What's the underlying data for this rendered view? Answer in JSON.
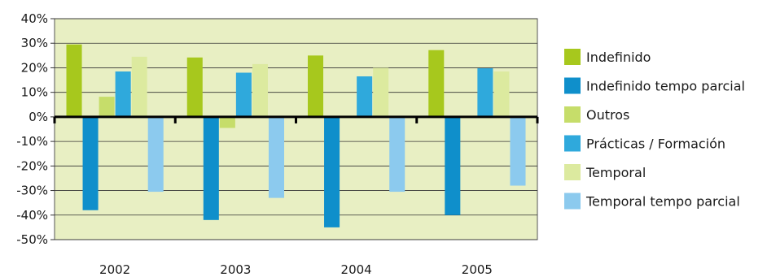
{
  "chart_data": {
    "type": "bar",
    "categories": [
      "2002",
      "2003",
      "2004",
      "2005"
    ],
    "series": [
      {
        "name": "Indefinido",
        "color": "#a7c81d",
        "values": [
          29.5,
          24.2,
          25.0,
          27.2
        ]
      },
      {
        "name": "Indefinido tempo parcial",
        "color": "#0f8fcb",
        "values": [
          -38.0,
          -42.0,
          -45.0,
          -40.0
        ]
      },
      {
        "name": "Outros",
        "color": "#c6dd6a",
        "values": [
          8.2,
          -4.5,
          0,
          0
        ]
      },
      {
        "name": "Prácticas / Formación",
        "color": "#2fa9dc",
        "values": [
          18.5,
          18.0,
          16.5,
          19.8
        ]
      },
      {
        "name": "Temporal",
        "color": "#dcea9f",
        "values": [
          24.5,
          21.5,
          20.0,
          18.5
        ]
      },
      {
        "name": "Temporal tempo parcial",
        "color": "#8ccaee",
        "values": [
          -30.5,
          -33.0,
          -30.5,
          -28.0
        ]
      }
    ],
    "ylim": [
      -50,
      40
    ],
    "yticks": [
      40,
      30,
      20,
      10,
      0,
      -10,
      -20,
      -30,
      -40,
      -50
    ],
    "ytick_labels": [
      "40%",
      "30%",
      "20%",
      "10%",
      "0%",
      "-10%",
      "-20%",
      "-30%",
      "-40%",
      "-50%"
    ],
    "grid": true,
    "legend_position": "right",
    "plot_background": "#e8efc3",
    "title": "",
    "xlabel": "",
    "ylabel": ""
  }
}
